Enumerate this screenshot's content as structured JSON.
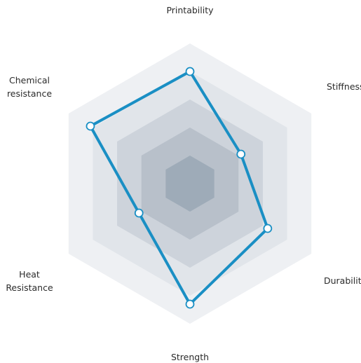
{
  "chart_data": {
    "type": "radar",
    "axes": [
      "Printability",
      "Stiffness",
      "Durability",
      "Strength",
      "Heat Resistance",
      "Chemical resistance"
    ],
    "axis_label_lines": [
      [
        "Printability"
      ],
      [
        "Stiffness"
      ],
      [
        "Durability"
      ],
      [
        "Strength"
      ],
      [
        "Heat",
        "Resistance"
      ],
      [
        "Chemical",
        "resistance"
      ]
    ],
    "range": [
      0,
      5
    ],
    "levels": 5,
    "series": [
      {
        "values": [
          4,
          2.1,
          3.2,
          4.3,
          2.1,
          4.1
        ],
        "color": "#1a8fc4"
      }
    ],
    "ring_colors": [
      "#eef0f3",
      "#e1e5ea",
      "#cdd3db",
      "#b8c0ca",
      "#9eabb8"
    ],
    "grid": false,
    "legend": "none"
  }
}
